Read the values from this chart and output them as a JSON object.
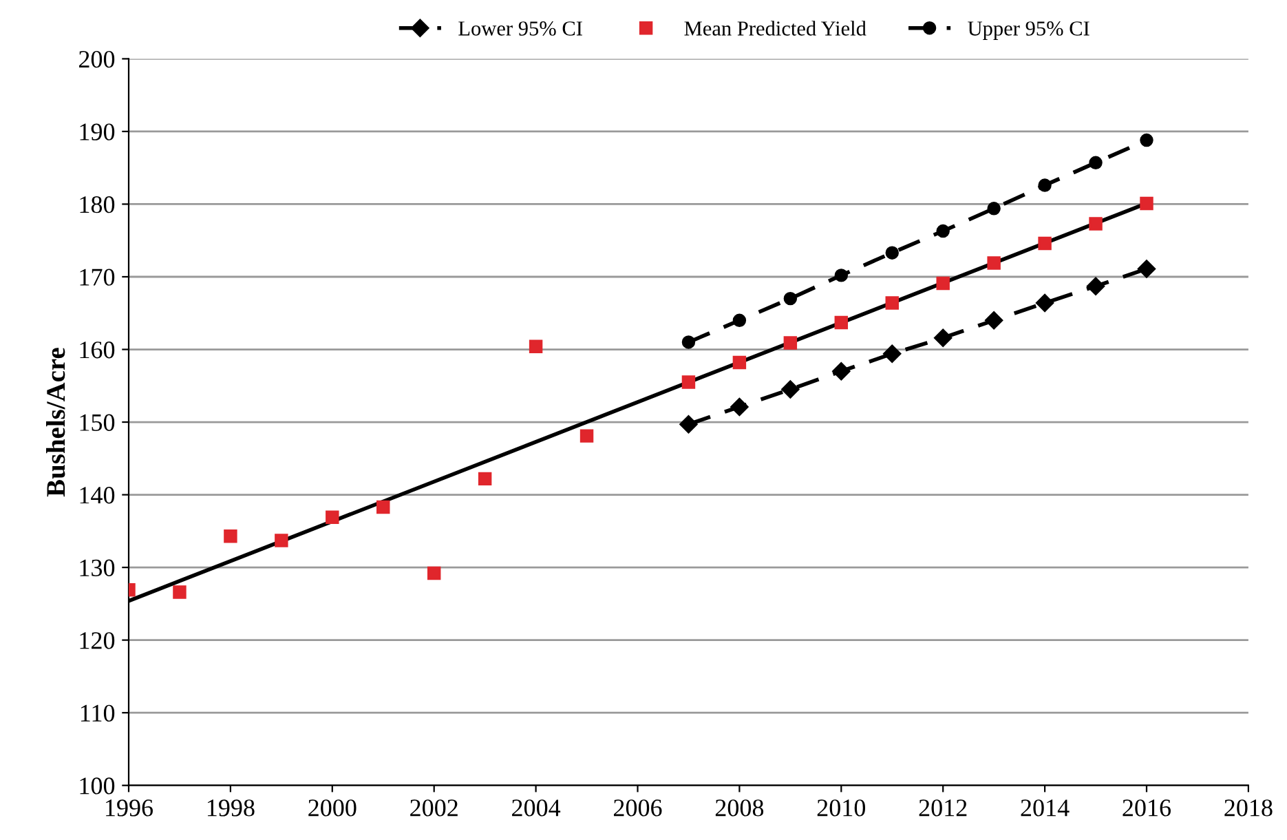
{
  "chart_data": {
    "type": "scatter",
    "ylabel": "Bushels/Acre",
    "xlim": [
      1996,
      2018
    ],
    "xticks": [
      1996,
      1998,
      2000,
      2002,
      2004,
      2006,
      2008,
      2010,
      2012,
      2014,
      2016,
      2018
    ],
    "ylim": [
      100,
      200
    ],
    "yticks": [
      100,
      110,
      120,
      130,
      140,
      150,
      160,
      170,
      180,
      190,
      200
    ],
    "grid": "y",
    "legend": "top",
    "series": [
      {
        "name": "Lower 95% CI",
        "type": "line",
        "color": "#000000",
        "marker": "diamond",
        "line_style": "dashed",
        "x": [
          2007,
          2008,
          2009,
          2010,
          2011,
          2012,
          2013,
          2014,
          2015,
          2016
        ],
        "values": [
          149.7,
          152.1,
          154.5,
          157.0,
          159.4,
          161.6,
          164.0,
          166.4,
          168.7,
          171.1
        ]
      },
      {
        "name": "Mean Predicted Yield",
        "color": "#e0262c",
        "marker": "square",
        "x": [
          1996,
          1997,
          1998,
          1999,
          2000,
          2001,
          2002,
          2003,
          2004,
          2005,
          2007,
          2008,
          2009,
          2010,
          2011,
          2012,
          2013,
          2014,
          2015,
          2016
        ],
        "values": [
          126.9,
          126.6,
          134.3,
          133.7,
          136.9,
          138.3,
          129.2,
          142.2,
          160.4,
          148.1,
          155.5,
          158.2,
          160.9,
          163.7,
          166.4,
          169.1,
          171.9,
          174.6,
          177.3,
          180.1
        ]
      },
      {
        "name": "Upper 95% CI",
        "type": "line",
        "color": "#000000",
        "marker": "circle",
        "line_style": "dashed",
        "x": [
          2007,
          2008,
          2009,
          2010,
          2011,
          2012,
          2013,
          2014,
          2015,
          2016
        ],
        "values": [
          161.0,
          164.0,
          167.0,
          170.2,
          173.3,
          176.3,
          179.4,
          182.6,
          185.7,
          188.8
        ]
      },
      {
        "type": "line",
        "color": "#000000",
        "marker": "none",
        "line_style": "solid",
        "x": [
          1996,
          2016
        ],
        "values": [
          125.4,
          180.1
        ]
      }
    ]
  }
}
